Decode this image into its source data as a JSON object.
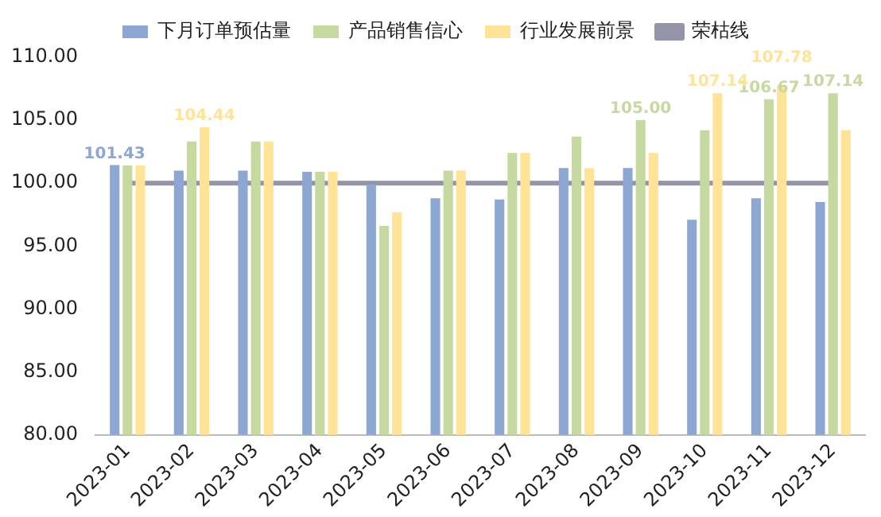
{
  "chart_data": {
    "type": "bar",
    "categories": [
      "2023-01",
      "2023-02",
      "2023-03",
      "2023-04",
      "2023-05",
      "2023-06",
      "2023-07",
      "2023-08",
      "2023-09",
      "2023-10",
      "2023-11",
      "2023-12"
    ],
    "series": [
      {
        "name": "下月订单预估量",
        "color": "#8ea7d2",
        "values": [
          101.43,
          101.0,
          101.0,
          100.9,
          99.9,
          98.8,
          98.7,
          101.2,
          101.2,
          97.1,
          98.8,
          98.5
        ],
        "value_labels": [
          "101.43",
          null,
          null,
          null,
          null,
          null,
          null,
          null,
          null,
          null,
          null,
          null
        ]
      },
      {
        "name": "产品销售信心",
        "color": "#c6d9a0",
        "values": [
          101.4,
          103.3,
          103.3,
          100.9,
          96.6,
          101.0,
          102.4,
          103.7,
          105.0,
          104.2,
          106.67,
          107.14
        ],
        "value_labels": [
          null,
          null,
          null,
          null,
          null,
          null,
          null,
          null,
          "105.00",
          null,
          "106.67",
          "107.14"
        ]
      },
      {
        "name": "行业发展前景",
        "color": "#ffe396",
        "values": [
          101.4,
          104.44,
          103.3,
          100.9,
          97.7,
          101.0,
          102.4,
          101.2,
          102.4,
          107.14,
          107.78,
          104.2
        ],
        "value_labels": [
          null,
          "104.44",
          null,
          null,
          null,
          null,
          null,
          null,
          null,
          "107.14",
          "107.78",
          null
        ]
      },
      {
        "name": "荣枯线",
        "type": "line",
        "color": "#9494a8",
        "values": [
          100,
          100,
          100,
          100,
          100,
          100,
          100,
          100,
          100,
          100,
          100,
          100
        ]
      }
    ],
    "ylim": [
      80,
      110
    ],
    "yticks": [
      {
        "value": 80,
        "label": "80.00"
      },
      {
        "value": 85,
        "label": "85.00"
      },
      {
        "value": 90,
        "label": "90.00"
      },
      {
        "value": 95,
        "label": "95.00"
      },
      {
        "value": 100,
        "label": "100.00"
      },
      {
        "value": 105,
        "label": "105.00"
      },
      {
        "value": 110,
        "label": "110.00"
      }
    ],
    "grid": false,
    "legend": "top",
    "marker": "none"
  }
}
